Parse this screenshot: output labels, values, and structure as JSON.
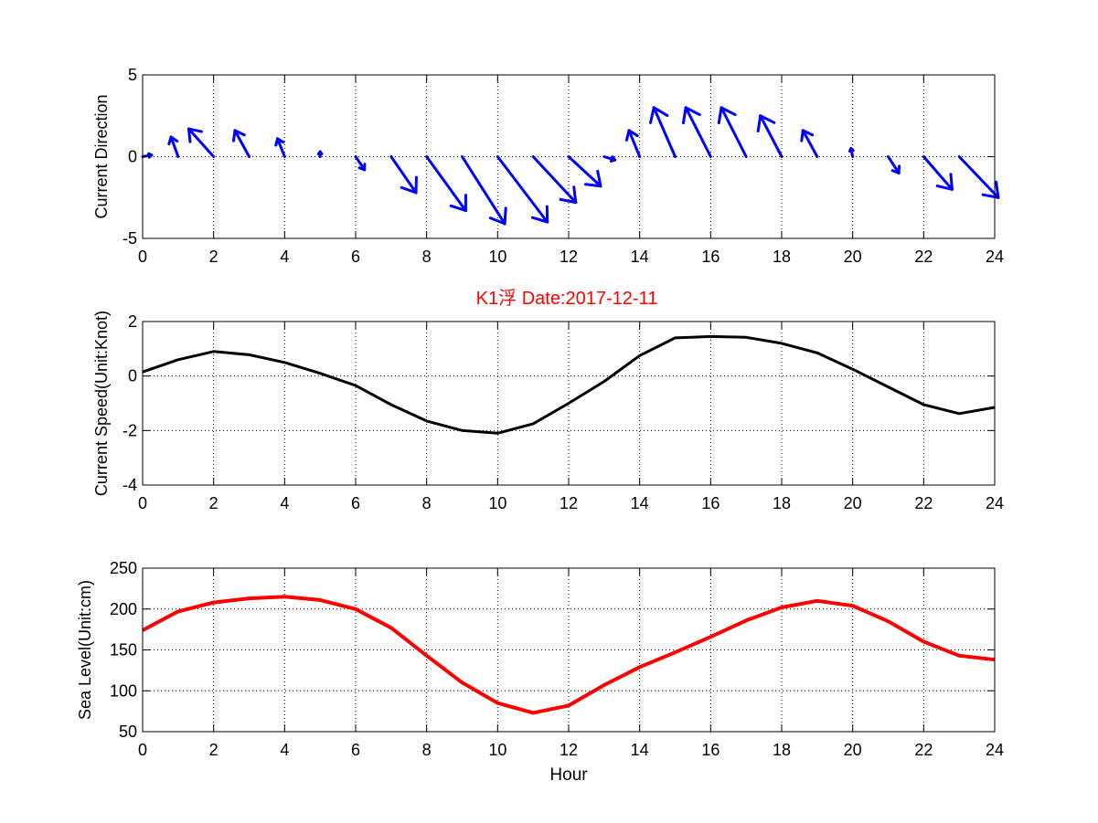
{
  "figure_title": "K1浮   Date:2017-12-11",
  "colors": {
    "direction": "#0000ff",
    "speed": "#000000",
    "sea_level": "#ff0000",
    "title": "#ff0000"
  },
  "chart_data": [
    {
      "type": "quiver",
      "ylabel": "Current Direction",
      "xlabel": "",
      "xlim": [
        0,
        24
      ],
      "ylim": [
        -5,
        5
      ],
      "xticks": [
        0,
        2,
        4,
        6,
        8,
        10,
        12,
        14,
        16,
        18,
        20,
        22,
        24
      ],
      "yticks": [
        -5,
        0,
        5
      ],
      "grid": true,
      "x": [
        0,
        1,
        2,
        3,
        4,
        5,
        6,
        7,
        8,
        9,
        10,
        11,
        12,
        13,
        14,
        15,
        16,
        17,
        18,
        19,
        20,
        21,
        22,
        23
      ],
      "u": [
        0.25,
        -0.2,
        -0.7,
        -0.4,
        -0.2,
        0.0,
        0.25,
        0.7,
        1.1,
        1.2,
        1.4,
        1.2,
        0.9,
        0.3,
        -0.3,
        -0.6,
        -0.7,
        -0.7,
        -0.6,
        -0.4,
        -0.05,
        0.3,
        0.8,
        1.1
      ],
      "v": [
        0.1,
        1.2,
        1.7,
        1.6,
        1.1,
        0.3,
        -0.8,
        -2.2,
        -3.3,
        -4.1,
        -4.0,
        -2.8,
        -1.8,
        -0.2,
        1.6,
        3.0,
        3.0,
        3.0,
        2.5,
        1.6,
        0.5,
        -1.0,
        -2.0,
        -2.5
      ]
    },
    {
      "type": "line",
      "ylabel": "Current Speed(Unit:Knot)",
      "xlabel": "",
      "xlim": [
        0,
        24
      ],
      "ylim": [
        -4,
        2
      ],
      "xticks": [
        0,
        2,
        4,
        6,
        8,
        10,
        12,
        14,
        16,
        18,
        20,
        22,
        24
      ],
      "yticks": [
        -4,
        -2,
        0,
        2
      ],
      "grid": true,
      "x": [
        0,
        1,
        2,
        3,
        4,
        5,
        6,
        7,
        8,
        9,
        10,
        11,
        12,
        13,
        14,
        15,
        16,
        17,
        18,
        19,
        20,
        21,
        22,
        23,
        24
      ],
      "values": [
        0.15,
        0.6,
        0.9,
        0.78,
        0.5,
        0.1,
        -0.35,
        -1.05,
        -1.65,
        -2.0,
        -2.1,
        -1.75,
        -1.0,
        -0.2,
        0.75,
        1.4,
        1.45,
        1.42,
        1.2,
        0.85,
        0.25,
        -0.4,
        -1.05,
        -1.38,
        -1.15
      ]
    },
    {
      "type": "line",
      "ylabel": "Sea Level(Unit:cm)",
      "xlabel": "Hour",
      "xlim": [
        0,
        24
      ],
      "ylim": [
        50,
        250
      ],
      "xticks": [
        0,
        2,
        4,
        6,
        8,
        10,
        12,
        14,
        16,
        18,
        20,
        22,
        24
      ],
      "yticks": [
        50,
        100,
        150,
        200,
        250
      ],
      "grid": true,
      "x": [
        0,
        1,
        2,
        3,
        4,
        5,
        6,
        7,
        8,
        9,
        10,
        11,
        12,
        13,
        14,
        15,
        16,
        17,
        18,
        19,
        20,
        21,
        22,
        23,
        24
      ],
      "values": [
        174,
        197,
        208,
        213,
        215,
        211,
        200,
        177,
        143,
        110,
        85,
        73,
        82,
        107,
        129,
        147,
        166,
        186,
        202,
        210,
        204,
        185,
        160,
        143,
        138
      ]
    }
  ]
}
